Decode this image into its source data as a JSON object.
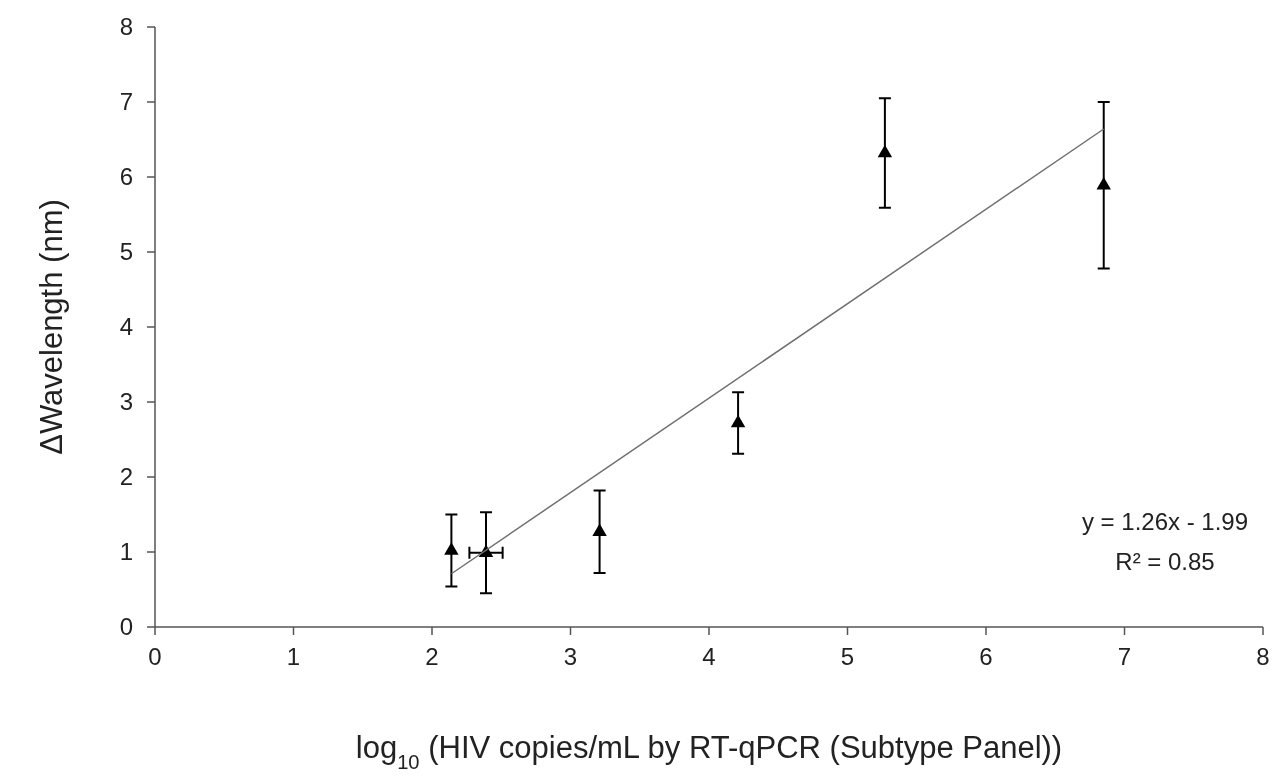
{
  "chart_data": {
    "type": "scatter",
    "xlabel": "log$_{10}$ (HIV copies/mL by RT-qPCR (Subtype Panel))",
    "ylabel": "ΔWavelength (nm)",
    "xlim": [
      0,
      8
    ],
    "ylim": [
      0,
      8
    ],
    "xticks": [
      0,
      1,
      2,
      3,
      4,
      5,
      6,
      7,
      8
    ],
    "yticks": [
      0,
      1,
      2,
      3,
      4,
      5,
      6,
      7,
      8
    ],
    "marker": "triangle",
    "grid": false,
    "annotations": [
      "y = 1.26x - 1.99",
      "R² = 0.85"
    ],
    "series": [
      {
        "color": "#000000",
        "x": [
          2.14,
          2.39,
          3.21,
          4.21,
          5.27,
          6.85
        ],
        "values": [
          1.02,
          0.99,
          1.27,
          2.72,
          6.32,
          5.89
        ],
        "errors": [
          0.48,
          0.54,
          0.55,
          0.41,
          0.73,
          1.11
        ],
        "xerrors": [
          null,
          0.12,
          null,
          null,
          null,
          null
        ]
      },
      {
        "type": "line",
        "color": "#707070",
        "marker": "none",
        "x": [
          2.14,
          6.85
        ],
        "values": [
          0.71,
          6.64
        ]
      }
    ]
  }
}
